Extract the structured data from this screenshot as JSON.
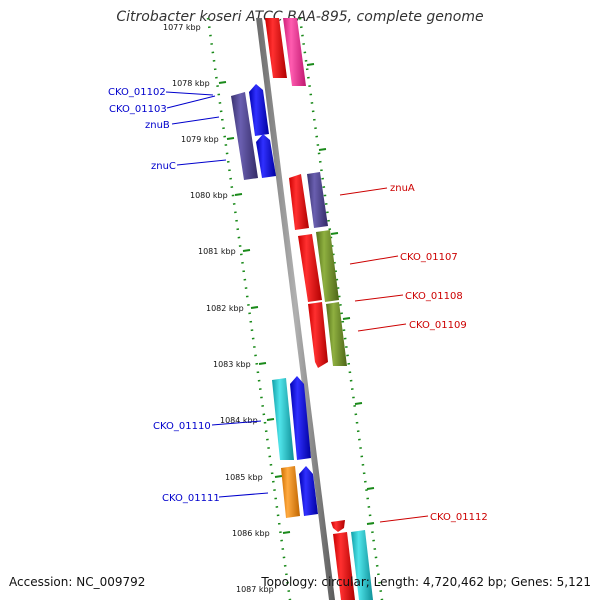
{
  "title": "Citrobacter koseri ATCC BAA-895, complete genome",
  "footer": {
    "accession": "Accession: NC_009792",
    "summary": "Topology: circular; Length: 4,720,462 bp; Genes: 5,121"
  },
  "ticks": [
    {
      "label": "1077 kbp"
    },
    {
      "label": "1078 kbp"
    },
    {
      "label": "1079 kbp"
    },
    {
      "label": "1080 kbp"
    },
    {
      "label": "1081 kbp"
    },
    {
      "label": "1082 kbp"
    },
    {
      "label": "1083 kbp"
    },
    {
      "label": "1084 kbp"
    },
    {
      "label": "1085 kbp"
    },
    {
      "label": "1086 kbp"
    },
    {
      "label": "1087 kbp"
    }
  ],
  "gene_labels_forward": [
    {
      "name": "CKO_01102"
    },
    {
      "name": "CKO_01103"
    },
    {
      "name": "znuB"
    },
    {
      "name": "znuC"
    },
    {
      "name": "CKO_01110"
    },
    {
      "name": "CKO_01111"
    }
  ],
  "gene_labels_reverse": [
    {
      "name": "znuA"
    },
    {
      "name": "CKO_01107"
    },
    {
      "name": "CKO_01108"
    },
    {
      "name": "CKO_01109"
    },
    {
      "name": "CKO_01112"
    }
  ],
  "colors": {
    "backbone": "#808080",
    "forward_label": "#0000cc",
    "reverse_label": "#cc0000",
    "tick": "#1a8a1a",
    "cds_red": "#ff0000",
    "cds_blue": "#0000ff",
    "cds_purple": "#4b3f8f",
    "cds_magenta": "#ff2d9a",
    "cds_olive": "#6b8e23",
    "cds_cyan": "#18c8d0",
    "cds_orange": "#ff8c00"
  }
}
